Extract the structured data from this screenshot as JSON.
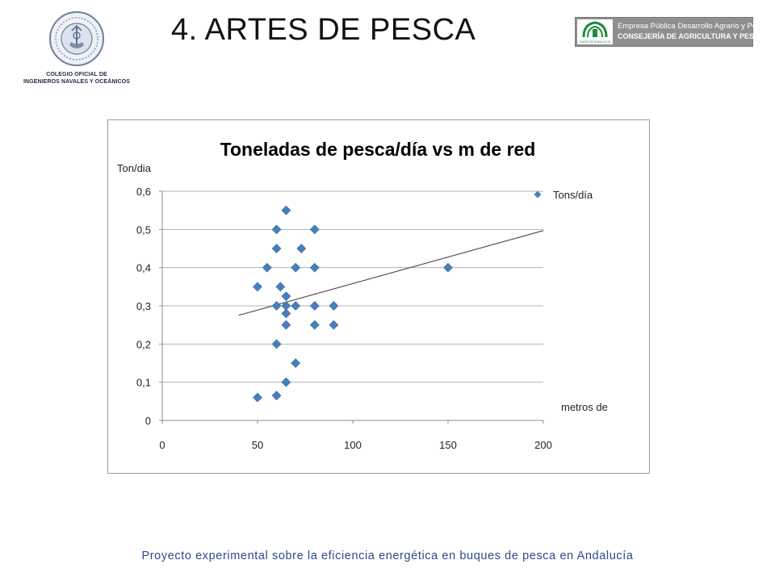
{
  "header": {
    "title": "4. ARTES DE PESCA",
    "left_logo": {
      "line1": "COLEGIO OFICIAL DE",
      "line2": "INGENIEROS NAVALES Y OCEÁNICOS"
    },
    "right_logo": {
      "line1": "Empresa Pública Desarrollo Agrario y Pesquero",
      "line2": "CONSEJERÍA DE AGRICULTURA Y PESCA",
      "emblem_caption": "JUNTA DE ANDALUCIA"
    }
  },
  "colors": {
    "marker": "#4a7ebb",
    "trendline": "#555555",
    "grid": "#b3b3b3",
    "footer_text": "#2a4a8c",
    "banner": "#8f8f8f",
    "emblem_green": "#1f8a3b"
  },
  "chart_data": {
    "type": "scatter",
    "title": "Toneladas de pesca/día vs m de red",
    "ylabel": "Ton/dia",
    "xlabel": "metros de",
    "xlim": [
      0,
      200
    ],
    "ylim": [
      0,
      0.6
    ],
    "x_ticks": [
      0,
      50,
      100,
      150,
      200
    ],
    "y_ticks": [
      0,
      0.1,
      0.2,
      0.3,
      0.4,
      0.5,
      0.6
    ],
    "x_tick_labels": [
      "0",
      "50",
      "100",
      "150",
      "200"
    ],
    "y_tick_labels": [
      "0",
      "0,1",
      "0,2",
      "0,3",
      "0,4",
      "0,5",
      "0,6"
    ],
    "grid": "horizontal",
    "legend_position": "top-right",
    "series": [
      {
        "name": "Tons/día",
        "marker": "diamond",
        "points": [
          {
            "x": 50,
            "y": 0.06
          },
          {
            "x": 50,
            "y": 0.35
          },
          {
            "x": 55,
            "y": 0.4
          },
          {
            "x": 60,
            "y": 0.065
          },
          {
            "x": 60,
            "y": 0.2
          },
          {
            "x": 60,
            "y": 0.3
          },
          {
            "x": 60,
            "y": 0.45
          },
          {
            "x": 60,
            "y": 0.5
          },
          {
            "x": 62,
            "y": 0.35
          },
          {
            "x": 65,
            "y": 0.1
          },
          {
            "x": 65,
            "y": 0.25
          },
          {
            "x": 65,
            "y": 0.28
          },
          {
            "x": 65,
            "y": 0.3
          },
          {
            "x": 65,
            "y": 0.325
          },
          {
            "x": 65,
            "y": 0.55
          },
          {
            "x": 70,
            "y": 0.15
          },
          {
            "x": 70,
            "y": 0.3
          },
          {
            "x": 70,
            "y": 0.4
          },
          {
            "x": 73,
            "y": 0.45
          },
          {
            "x": 80,
            "y": 0.25
          },
          {
            "x": 80,
            "y": 0.3
          },
          {
            "x": 80,
            "y": 0.4
          },
          {
            "x": 80,
            "y": 0.5
          },
          {
            "x": 90,
            "y": 0.25
          },
          {
            "x": 90,
            "y": 0.3
          },
          {
            "x": 150,
            "y": 0.4
          }
        ]
      }
    ],
    "trendline": {
      "type": "linear",
      "x_start": 40,
      "y_start": 0.275,
      "x_end": 200,
      "y_end": 0.497
    }
  },
  "footer": {
    "text": "Proyecto experimental sobre la eficiencia energética en buques de pesca en Andalucía"
  }
}
